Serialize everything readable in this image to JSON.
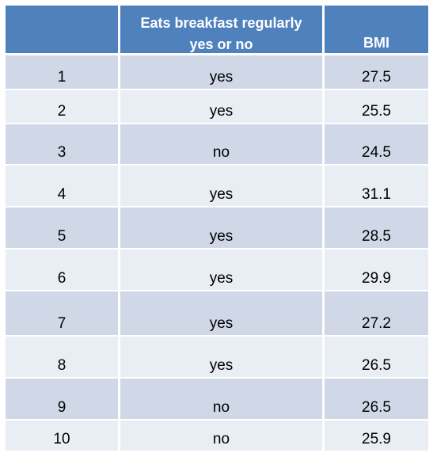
{
  "table": {
    "headers": {
      "index": "",
      "breakfast_line1": "Eats breakfast regularly",
      "breakfast_line2": "yes or no",
      "bmi": "BMI"
    },
    "rows": [
      {
        "id": "1",
        "breakfast": "yes",
        "bmi": "27.5"
      },
      {
        "id": "2",
        "breakfast": "yes",
        "bmi": "25.5"
      },
      {
        "id": "3",
        "breakfast": "no",
        "bmi": "24.5"
      },
      {
        "id": "4",
        "breakfast": "yes",
        "bmi": "31.1"
      },
      {
        "id": "5",
        "breakfast": "yes",
        "bmi": "28.5"
      },
      {
        "id": "6",
        "breakfast": "yes",
        "bmi": "29.9"
      },
      {
        "id": "7",
        "breakfast": "yes",
        "bmi": "27.2"
      },
      {
        "id": "8",
        "breakfast": "yes",
        "bmi": "26.5"
      },
      {
        "id": "9",
        "breakfast": "no",
        "bmi": "26.5"
      },
      {
        "id": "10",
        "breakfast": "no",
        "bmi": "25.9"
      }
    ]
  },
  "colors": {
    "header": "#4f81bd",
    "row_dark": "#d0d8e8",
    "row_light": "#e9edf4"
  }
}
